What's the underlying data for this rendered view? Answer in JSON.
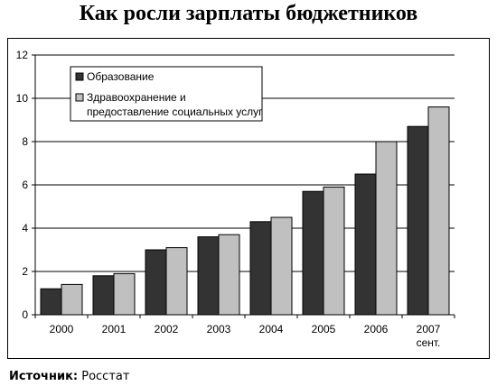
{
  "chart_data": {
    "type": "bar",
    "title": "Как росли зарплаты бюджетников",
    "categories": [
      "2000",
      "2001",
      "2002",
      "2003",
      "2004",
      "2005",
      "2006",
      "2007 сент."
    ],
    "category_lines": [
      [
        "2000"
      ],
      [
        "2001"
      ],
      [
        "2002"
      ],
      [
        "2003"
      ],
      [
        "2004"
      ],
      [
        "2005"
      ],
      [
        "2006"
      ],
      [
        "2007",
        "сент."
      ]
    ],
    "series": [
      {
        "name": "Образование",
        "color": "#333333",
        "values": [
          1.2,
          1.8,
          3.0,
          3.6,
          4.3,
          5.7,
          6.5,
          8.7
        ]
      },
      {
        "name": "Здравоохранение и предоставление социальных услуг",
        "name_lines": [
          "Здравоохранение и",
          "предоставление социальных услуг"
        ],
        "color": "#c0c0c0",
        "values": [
          1.4,
          1.9,
          3.1,
          3.7,
          4.5,
          5.9,
          8.0,
          9.6
        ]
      }
    ],
    "ylim": [
      0,
      12
    ],
    "yticks": [
      "0",
      "2",
      "4",
      "6",
      "8",
      "10",
      "12"
    ],
    "grid": true,
    "legend_position": "top-left"
  },
  "source": {
    "label": "Источник:",
    "value": "Росстат"
  }
}
